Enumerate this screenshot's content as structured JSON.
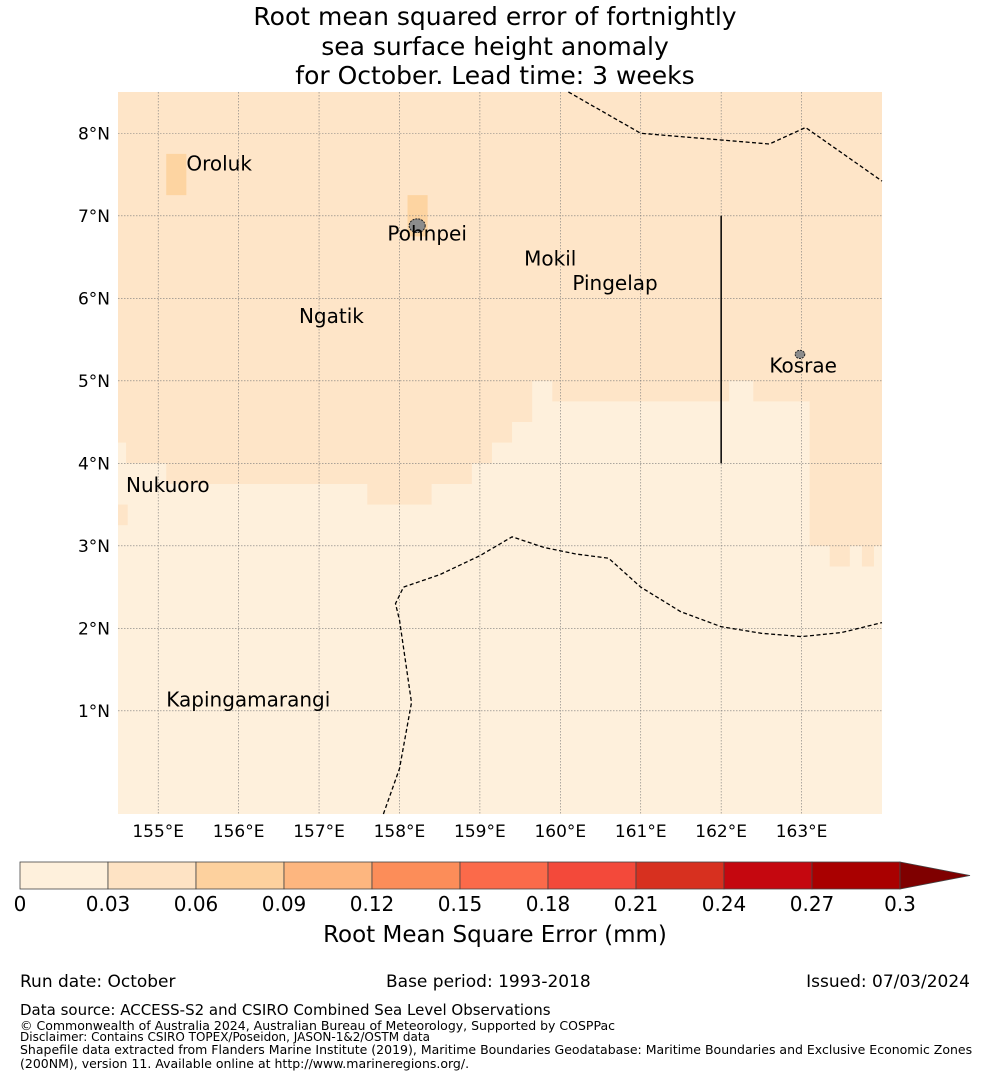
{
  "title": {
    "line1": "Root mean squared error of fortnightly",
    "line2": "sea surface height anomaly",
    "line3": "for October. Lead time: 3 weeks"
  },
  "map": {
    "lon_range": [
      154.5,
      164.0
    ],
    "lat_range": [
      -0.25,
      8.5
    ],
    "lon_ticks": [
      "155°E",
      "156°E",
      "157°E",
      "158°E",
      "159°E",
      "160°E",
      "161°E",
      "162°E",
      "163°E"
    ],
    "lon_tick_values": [
      155,
      156,
      157,
      158,
      159,
      160,
      161,
      162,
      163
    ],
    "lat_ticks": [
      "8°N",
      "7°N",
      "6°N",
      "5°N",
      "4°N",
      "3°N",
      "2°N",
      "1°N"
    ],
    "lat_tick_values": [
      8,
      7,
      6,
      5,
      4,
      3,
      2,
      1
    ],
    "grid": true,
    "places": [
      {
        "name": "Oroluk",
        "lon": 155.35,
        "lat": 7.55
      },
      {
        "name": "Pohnpei",
        "lon": 157.85,
        "lat": 6.7
      },
      {
        "name": "Mokil",
        "lon": 159.55,
        "lat": 6.4
      },
      {
        "name": "Pingelap",
        "lon": 160.15,
        "lat": 6.1
      },
      {
        "name": "Ngatik",
        "lon": 156.75,
        "lat": 5.7
      },
      {
        "name": "Kosrae",
        "lon": 162.6,
        "lat": 5.1
      },
      {
        "name": "Nukuoro",
        "lon": 154.6,
        "lat": 3.65
      },
      {
        "name": "Kapingamarangi",
        "lon": 155.1,
        "lat": 1.05
      }
    ],
    "islands": [
      {
        "name": "Pohnpei",
        "lon": 158.22,
        "lat": 6.88,
        "r": 0.1
      },
      {
        "name": "Kosrae",
        "lon": 162.98,
        "lat": 5.32,
        "r": 0.06
      }
    ],
    "high_cells": [
      {
        "lon0": 155.1,
        "lon1": 155.35,
        "lat0": 7.25,
        "lat1": 7.75
      },
      {
        "lon0": 158.1,
        "lon1": 158.35,
        "lat0": 6.75,
        "lat1": 7.25
      }
    ],
    "boundary_line": {
      "lon": 162.0,
      "lat0": 4.0,
      "lat1": 7.0
    },
    "eez_north": [
      [
        160.1,
        8.5
      ],
      [
        161.0,
        8.0
      ],
      [
        162.6,
        7.87
      ],
      [
        163.05,
        8.07
      ],
      [
        164.0,
        7.42
      ]
    ],
    "eez_south": [
      [
        157.8,
        -0.25
      ],
      [
        158.0,
        0.3
      ],
      [
        158.15,
        1.1
      ],
      [
        158.0,
        2.1
      ],
      [
        157.95,
        2.3
      ],
      [
        158.05,
        2.5
      ],
      [
        158.5,
        2.65
      ],
      [
        159.0,
        2.88
      ],
      [
        159.4,
        3.11
      ],
      [
        159.8,
        2.98
      ],
      [
        160.2,
        2.9
      ],
      [
        160.6,
        2.85
      ],
      [
        161.0,
        2.5
      ],
      [
        161.5,
        2.2
      ],
      [
        162.0,
        2.02
      ],
      [
        162.5,
        1.94
      ],
      [
        163.0,
        1.9
      ],
      [
        163.5,
        1.95
      ],
      [
        164.0,
        2.07
      ]
    ]
  },
  "colorbar": {
    "label": "Root Mean Square Error (mm)",
    "ticks": [
      "0",
      "0.03",
      "0.06",
      "0.09",
      "0.12",
      "0.15",
      "0.18",
      "0.21",
      "0.24",
      "0.27",
      "0.3"
    ],
    "colors": [
      "#fef0dc",
      "#fee3c4",
      "#fdd19e",
      "#fdb67f",
      "#fc8d59",
      "#fb6a4a",
      "#f3493a",
      "#d7301f",
      "#c5070f",
      "#a90000"
    ],
    "extend_color": "#7f0000",
    "map_low_color": "#fef0dc",
    "map_mid_color": "#fee5c8",
    "map_high_color": "#fdd4a1"
  },
  "meta": {
    "run_date": "Run date: October",
    "base_period": "Base period: 1993-2018",
    "issued": "Issued: 07/03/2024",
    "source": "Data source: ACCESS-S2 and CSIRO Combined Sea Level Observations",
    "copyright": "© Commonwealth of Australia 2024, Australian Bureau of Meteorology, Supported by COSPPac",
    "disclaimer": "Disclaimer: Contains CSIRO TOPEX/Poseidon, JASON-1&2/OSTM data",
    "shapefile1": "Shapefile data extracted from Flanders Marine Institute (2019), Maritime Boundaries Geodatabase: Maritime Boundaries and Exclusive Economic Zones",
    "shapefile2": "(200NM), version 11. Available online at http://www.marineregions.org/."
  }
}
